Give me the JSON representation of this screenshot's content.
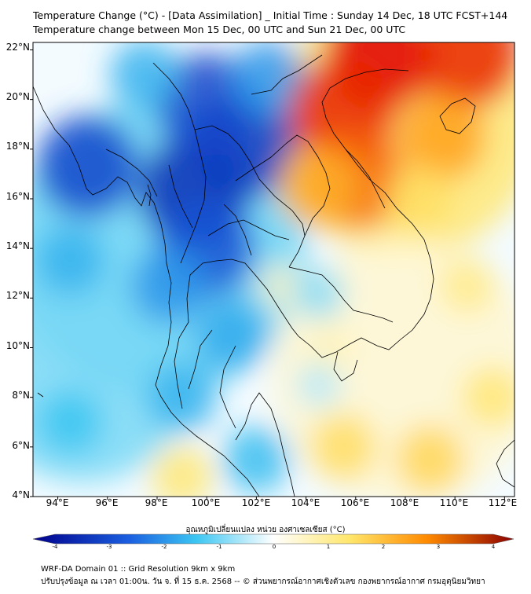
{
  "header": {
    "title": "Temperature Change (°C) - [Data Assimilation] _ Initial Time : Sunday 14 Dec, 18 UTC FCST+144",
    "subtitle": "Temperature change between Mon 15 Dec, 00 UTC and Sun 21 Dec, 00 UTC"
  },
  "map": {
    "lat_range": [
      4,
      22.3
    ],
    "lon_range": [
      93,
      112.4
    ],
    "lat_ticks": [
      "22°N",
      "20°N",
      "18°N",
      "16°N",
      "14°N",
      "12°N",
      "10°N",
      "8°N",
      "6°N",
      "4°N"
    ],
    "lon_ticks": [
      "94°E",
      "96°E",
      "98°E",
      "100°E",
      "102°E",
      "104°E",
      "106°E",
      "108°E",
      "110°E",
      "112°E"
    ]
  },
  "colorbar": {
    "label": "อุณหภูมิเปลี่ยนแปลง หน่วย องศาเซลเซียส (°C)",
    "min": -4,
    "max": 4,
    "ticks": [
      "-4",
      "-3",
      "-2",
      "-1",
      "0",
      "1",
      "2",
      "3",
      "4"
    ]
  },
  "footer": {
    "line1": "WRF-DA Domain 01 :: Grid Resolution 9km x 9km",
    "line2": "ปรับปรุงข้อมูล ณ เวลา 01:00น. วัน จ. ที่ 15 ธ.ค. 2568 -- © ส่วนพยากรณ์อากาศเชิงตัวเลข กองพยากรณ์อากาศ กรมอุตุนิยมวิทยา"
  },
  "colors": {
    "cold_max": "#00008b",
    "cold": "#1b5fe0",
    "cool": "#3cc6f2",
    "neutral": "#ffffff",
    "warm": "#ffe66a",
    "hot": "#ff8a00",
    "hot_max": "#e00000",
    "coastline": "#000000"
  },
  "chart_data": {
    "type": "heatmap",
    "variable": "temperature change",
    "units": "°C",
    "lon_range": [
      93,
      112.4
    ],
    "lat_range": [
      4,
      22.3
    ],
    "value_range": [
      -4,
      4
    ],
    "anomalies": [
      {
        "lon": 99.5,
        "lat": 16.3,
        "value": -3.2
      },
      {
        "lon": 101.5,
        "lat": 18.2,
        "value": -3.0
      },
      {
        "lon": 100.0,
        "lat": 19.8,
        "value": -2.8
      },
      {
        "lon": 95.2,
        "lat": 17.3,
        "value": -2.8
      },
      {
        "lon": 100.0,
        "lat": 14.0,
        "value": -2.6
      },
      {
        "lon": 98.5,
        "lat": 12.5,
        "value": -1.8
      },
      {
        "lon": 102.5,
        "lat": 20.8,
        "value": -1.8
      },
      {
        "lon": 97.5,
        "lat": 21.0,
        "value": -1.5
      },
      {
        "lon": 94.5,
        "lat": 13.5,
        "value": -1.5
      },
      {
        "lon": 101.0,
        "lat": 10.5,
        "value": -1.6
      },
      {
        "lon": 99.0,
        "lat": 8.0,
        "value": -1.5
      },
      {
        "lon": 94.5,
        "lat": 7.0,
        "value": -1.3
      },
      {
        "lon": 102.0,
        "lat": 5.5,
        "value": -1.4
      },
      {
        "lon": 107.0,
        "lat": 21.8,
        "value": 3.2
      },
      {
        "lon": 110.5,
        "lat": 21.8,
        "value": 3.0
      },
      {
        "lon": 105.5,
        "lat": 19.5,
        "value": 3.0
      },
      {
        "lon": 106.0,
        "lat": 16.8,
        "value": 2.7
      },
      {
        "lon": 104.5,
        "lat": 16.5,
        "value": 2.0
      },
      {
        "lon": 109.5,
        "lat": 18.5,
        "value": 2.2
      },
      {
        "lon": 108.5,
        "lat": 16.0,
        "value": 1.4
      },
      {
        "lon": 105.0,
        "lat": 10.0,
        "value": 0.6
      },
      {
        "lon": 105.5,
        "lat": 6.0,
        "value": 1.4
      },
      {
        "lon": 109.0,
        "lat": 5.5,
        "value": 1.5
      },
      {
        "lon": 111.5,
        "lat": 8.0,
        "value": 1.2
      },
      {
        "lon": 99.0,
        "lat": 4.8,
        "value": 1.2
      },
      {
        "lon": 103.0,
        "lat": 12.5,
        "value": 0.5
      },
      {
        "lon": 110.5,
        "lat": 12.5,
        "value": 1.0
      },
      {
        "lon": 104.5,
        "lat": 8.5,
        "value": -0.5
      },
      {
        "lon": 104.5,
        "lat": 12.2,
        "value": -0.8
      }
    ]
  }
}
